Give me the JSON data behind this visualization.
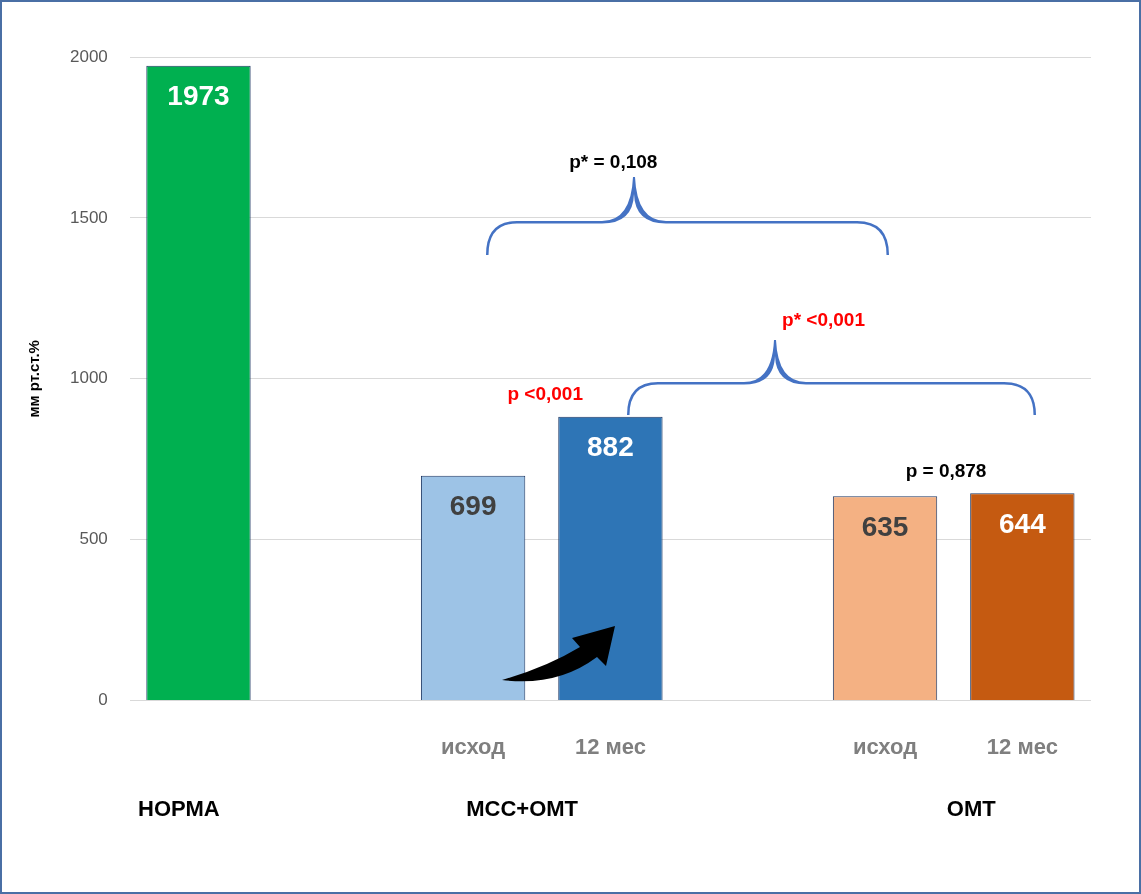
{
  "chart_data": {
    "type": "bar",
    "ylabel": "мм рт.ст.%",
    "categories": [
      null,
      null,
      "исход",
      "12 мес",
      null,
      "исход",
      "12 мес"
    ],
    "values": [
      1973,
      null,
      699,
      882,
      null,
      635,
      644
    ],
    "colors": [
      "#00b050",
      "#ffffff",
      "#9dc3e6",
      "#2e75b6",
      "#ffffff",
      "#f4b183",
      "#c55a11"
    ],
    "ylim": [
      0,
      2000
    ],
    "yticks": [
      0,
      500,
      1000,
      1500,
      2000
    ],
    "grid": "y",
    "legend": false,
    "data_labels": true,
    "annotations": [
      "p* = 0,108",
      "p* <0,001",
      "p <0,001",
      "p = 0,878",
      "НОРМА",
      "МСС+ОМТ",
      "ОМТ"
    ]
  }
}
